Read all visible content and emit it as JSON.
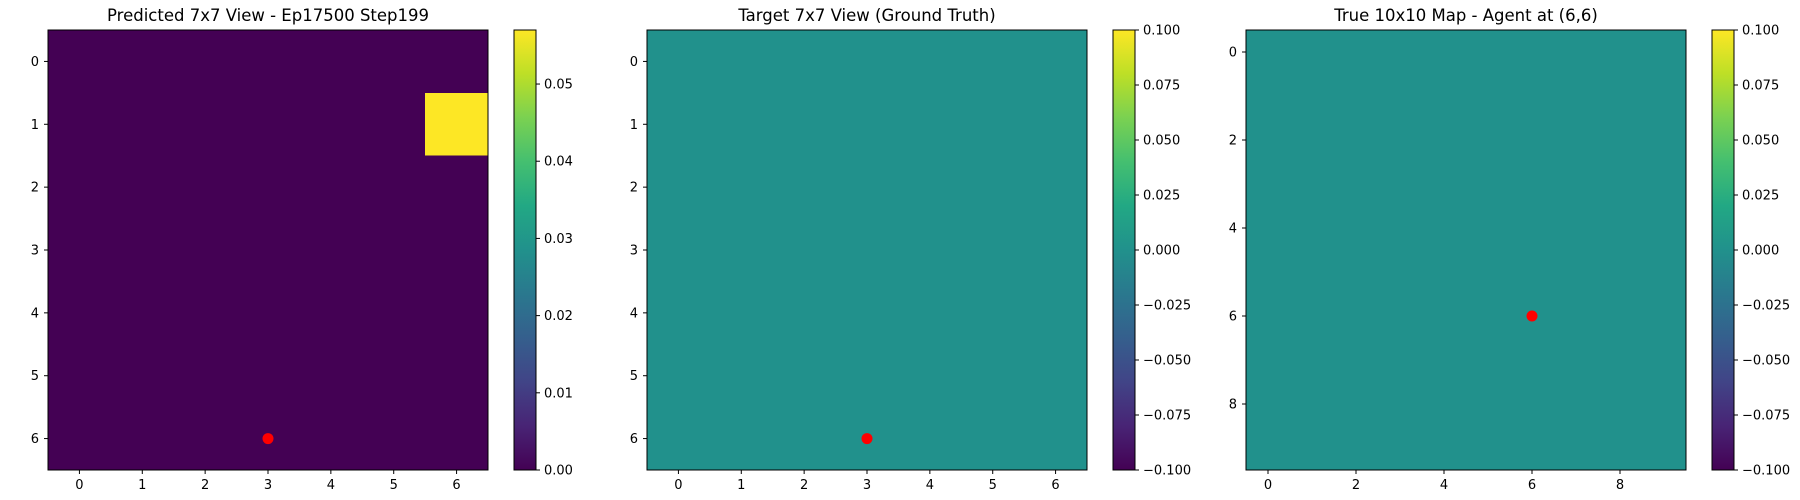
{
  "chart_data": [
    {
      "type": "heatmap",
      "title": "Predicted 7x7 View - Ep17500 Step199",
      "rows": 7,
      "cols": 7,
      "xticks": [
        0,
        1,
        2,
        3,
        4,
        5,
        6
      ],
      "yticks": [
        0,
        1,
        2,
        3,
        4,
        5,
        6
      ],
      "values": [
        [
          0,
          0,
          0,
          0,
          0,
          0,
          0
        ],
        [
          0,
          0,
          0,
          0,
          0,
          0,
          0.057
        ],
        [
          0,
          0,
          0,
          0,
          0,
          0,
          0
        ],
        [
          0,
          0,
          0,
          0,
          0,
          0,
          0
        ],
        [
          0,
          0,
          0,
          0,
          0,
          0,
          0
        ],
        [
          0,
          0,
          0,
          0,
          0,
          0,
          0
        ],
        [
          0,
          0,
          0,
          0,
          0,
          0,
          0
        ]
      ],
      "vmin": 0,
      "vmax": 0.057,
      "colormap": "viridis",
      "colorbar_ticks": [
        0.0,
        0.01,
        0.02,
        0.03,
        0.04,
        0.05
      ],
      "colorbar_labels": [
        "0.00",
        "0.01",
        "0.02",
        "0.03",
        "0.04",
        "0.05"
      ],
      "marker": {
        "x": 3,
        "y": 6,
        "color": "#ff0000"
      }
    },
    {
      "type": "heatmap",
      "title": "Target 7x7 View (Ground Truth)",
      "rows": 7,
      "cols": 7,
      "xticks": [
        0,
        1,
        2,
        3,
        4,
        5,
        6
      ],
      "yticks": [
        0,
        1,
        2,
        3,
        4,
        5,
        6
      ],
      "values": [
        [
          0,
          0,
          0,
          0,
          0,
          0,
          0
        ],
        [
          0,
          0,
          0,
          0,
          0,
          0,
          0
        ],
        [
          0,
          0,
          0,
          0,
          0,
          0,
          0
        ],
        [
          0,
          0,
          0,
          0,
          0,
          0,
          0
        ],
        [
          0,
          0,
          0,
          0,
          0,
          0,
          0
        ],
        [
          0,
          0,
          0,
          0,
          0,
          0,
          0
        ],
        [
          0,
          0,
          0,
          0,
          0,
          0,
          0
        ]
      ],
      "vmin": -0.1,
      "vmax": 0.1,
      "colormap": "viridis",
      "colorbar_ticks": [
        0.1,
        0.075,
        0.05,
        0.025,
        0,
        -0.025,
        -0.05,
        -0.075,
        -0.1
      ],
      "colorbar_labels": [
        "0.100",
        "0.075",
        "0.050",
        "0.025",
        "0.000",
        "−0.025",
        "−0.050",
        "−0.075",
        "−0.100"
      ],
      "marker": {
        "x": 3,
        "y": 6,
        "color": "#ff0000"
      }
    },
    {
      "type": "heatmap",
      "title": "True 10x10 Map - Agent at (6,6)",
      "rows": 10,
      "cols": 10,
      "xticks": [
        0,
        2,
        4,
        6,
        8
      ],
      "yticks": [
        0,
        2,
        4,
        6,
        8
      ],
      "values": [
        [
          0,
          0,
          0,
          0,
          0,
          0,
          0,
          0,
          0,
          0
        ],
        [
          0,
          0,
          0,
          0,
          0,
          0,
          0,
          0,
          0,
          0
        ],
        [
          0,
          0,
          0,
          0,
          0,
          0,
          0,
          0,
          0,
          0
        ],
        [
          0,
          0,
          0,
          0,
          0,
          0,
          0,
          0,
          0,
          0
        ],
        [
          0,
          0,
          0,
          0,
          0,
          0,
          0,
          0,
          0,
          0
        ],
        [
          0,
          0,
          0,
          0,
          0,
          0,
          0,
          0,
          0,
          0
        ],
        [
          0,
          0,
          0,
          0,
          0,
          0,
          0,
          0,
          0,
          0
        ],
        [
          0,
          0,
          0,
          0,
          0,
          0,
          0,
          0,
          0,
          0
        ],
        [
          0,
          0,
          0,
          0,
          0,
          0,
          0,
          0,
          0,
          0
        ],
        [
          0,
          0,
          0,
          0,
          0,
          0,
          0,
          0,
          0,
          0
        ]
      ],
      "vmin": -0.1,
      "vmax": 0.1,
      "colormap": "viridis",
      "colorbar_ticks": [
        0.1,
        0.075,
        0.05,
        0.025,
        0,
        -0.025,
        -0.05,
        -0.075,
        -0.1
      ],
      "colorbar_labels": [
        "0.100",
        "0.075",
        "0.050",
        "0.025",
        "0.000",
        "−0.025",
        "−0.050",
        "−0.075",
        "−0.100"
      ],
      "marker": {
        "x": 6,
        "y": 6,
        "color": "#ff0000"
      }
    }
  ]
}
